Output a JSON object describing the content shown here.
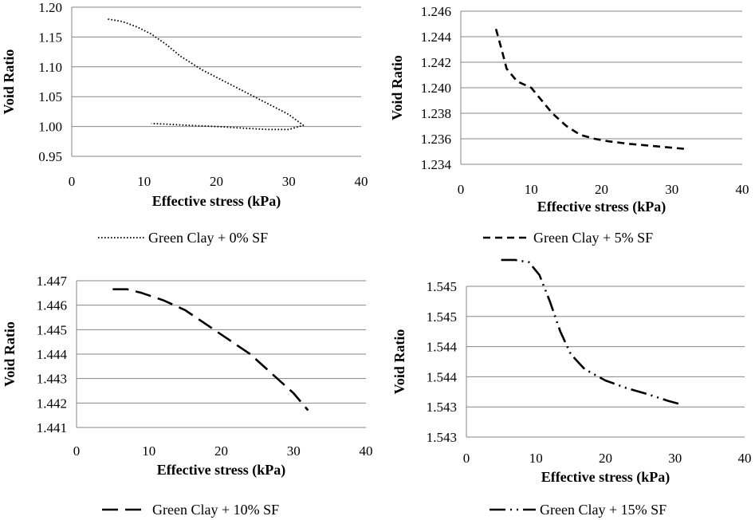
{
  "chart_data": [
    {
      "type": "line",
      "title": "",
      "xlabel": "Effective stress (kPa)",
      "ylabel": "Void Ratio",
      "xlim": [
        0,
        40
      ],
      "ylim": [
        0.95,
        1.2
      ],
      "x_ticks": [
        "0",
        "10",
        "20",
        "30",
        "40"
      ],
      "y_ticks": [
        "0.95",
        "1.00",
        "1.05",
        "1.10",
        "1.15",
        "1.20"
      ],
      "grid": "horizontal",
      "legend_position": "bottom",
      "series": [
        {
          "name": "Green Clay + 0% SF",
          "dash": "dotted",
          "x": [
            5,
            7,
            9,
            11,
            13,
            15,
            18,
            22,
            26,
            30,
            32,
            30,
            27,
            24,
            20,
            16,
            13,
            11
          ],
          "y": [
            1.18,
            1.176,
            1.167,
            1.155,
            1.138,
            1.118,
            1.095,
            1.07,
            1.045,
            1.02,
            1.002,
            0.995,
            0.995,
            0.997,
            1.0,
            1.002,
            1.004,
            1.005
          ]
        }
      ]
    },
    {
      "type": "line",
      "title": "",
      "xlabel": "Effective stress (kPa)",
      "ylabel": "Void Ratio",
      "xlim": [
        0,
        40
      ],
      "ylim": [
        1.234,
        1.246
      ],
      "x_ticks": [
        "0",
        "10",
        "20",
        "30",
        "40"
      ],
      "y_ticks": [
        "1.234",
        "1.236",
        "1.238",
        "1.240",
        "1.242",
        "1.244",
        "1.246"
      ],
      "grid": "horizontal",
      "legend_position": "bottom",
      "series": [
        {
          "name": "Green Clay + 5% SF",
          "dash": "dashed",
          "x": [
            5,
            5.8,
            6.5,
            8,
            10,
            11.5,
            13,
            15,
            17,
            19,
            21,
            24,
            28,
            32
          ],
          "y": [
            1.2446,
            1.243,
            1.2415,
            1.2405,
            1.24,
            1.239,
            1.238,
            1.237,
            1.2363,
            1.236,
            1.2358,
            1.2356,
            1.2354,
            1.2352
          ]
        }
      ]
    },
    {
      "type": "line",
      "title": "",
      "xlabel": "Effective stress (kPa)",
      "ylabel": "Void Ratio",
      "xlim": [
        0,
        40
      ],
      "ylim": [
        1.441,
        1.447
      ],
      "x_ticks": [
        "0",
        "10",
        "20",
        "30",
        "40"
      ],
      "y_ticks": [
        "1.441",
        "1.442",
        "1.443",
        "1.444",
        "1.445",
        "1.446",
        "1.447"
      ],
      "grid": "horizontal",
      "legend_position": "bottom",
      "series": [
        {
          "name": "Green Clay + 10% SF",
          "dash": "long-dash",
          "x": [
            5,
            7,
            9,
            12,
            15,
            18,
            21,
            24,
            27,
            30,
            32
          ],
          "y": [
            1.44665,
            1.44665,
            1.4465,
            1.4462,
            1.4458,
            1.4452,
            1.4446,
            1.444,
            1.4432,
            1.4424,
            1.4417
          ]
        }
      ]
    },
    {
      "type": "line",
      "title": "",
      "xlabel": "Effective stress (kPa)",
      "ylabel": "Void Ratio",
      "xlim": [
        0,
        40
      ],
      "ylim": [
        1.543,
        1.545
      ],
      "x_ticks": [
        "0",
        "10",
        "20",
        "30",
        "40"
      ],
      "y_ticks": [
        "1.543",
        "1.543",
        "1.544",
        "1.544",
        "1.545",
        "1.545"
      ],
      "grid": "horizontal",
      "legend_position": "bottom",
      "series": [
        {
          "name": "Green Clay + 15% SF",
          "dash": "long-dash-dot-dot",
          "x": [
            5,
            7,
            9,
            10.5,
            12,
            13.5,
            15,
            17,
            20,
            23,
            26,
            29,
            31
          ],
          "y": [
            1.54535,
            1.54535,
            1.54532,
            1.54515,
            1.5448,
            1.5444,
            1.5441,
            1.5439,
            1.54375,
            1.54365,
            1.54357,
            1.54348,
            1.54343
          ]
        }
      ]
    }
  ]
}
